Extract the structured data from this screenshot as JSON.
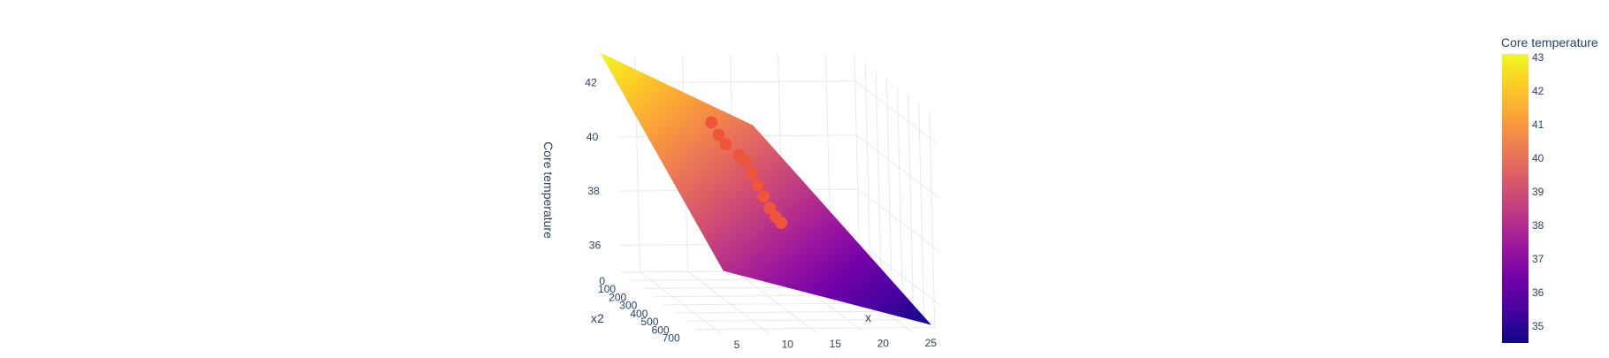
{
  "chart_data": {
    "type": "surface",
    "axes": {
      "x": {
        "title": "x",
        "ticks": [
          "5",
          "10",
          "15",
          "20",
          "25"
        ],
        "range": [
          3,
          28
        ]
      },
      "x2": {
        "title": "x2",
        "ticks": [
          "0",
          "100",
          "200",
          "300",
          "400",
          "500",
          "600",
          "700"
        ],
        "range": [
          0,
          760
        ]
      },
      "z": {
        "title": "Core temperature",
        "ticks": [
          "36",
          "38",
          "40",
          "42"
        ],
        "range": [
          35,
          43
        ]
      }
    },
    "grid": true,
    "surface": {
      "corners_temperature": [
        43,
        34.5
      ],
      "colorscale": [
        "#0d0887",
        "#46039f",
        "#7201a8",
        "#9c179e",
        "#bd3786",
        "#d8576b",
        "#ed7953",
        "#fb9f3a",
        "#fdca26",
        "#f0f921"
      ]
    },
    "scatter": {
      "marker_color": "#ef553b",
      "points": [
        {
          "x": 12,
          "x2": 330,
          "z": 40.3
        },
        {
          "x": 12.5,
          "x2": 340,
          "z": 40.1
        },
        {
          "x": 13,
          "x2": 355,
          "z": 39.7
        },
        {
          "x": 13.5,
          "x2": 365,
          "z": 39.3
        },
        {
          "x": 14,
          "x2": 375,
          "z": 38.9
        },
        {
          "x": 14.5,
          "x2": 385,
          "z": 38.5
        },
        {
          "x": 15,
          "x2": 395,
          "z": 38.2
        },
        {
          "x": 15.5,
          "x2": 400,
          "z": 38.0
        },
        {
          "x": 11,
          "x2": 300,
          "z": 40.6
        },
        {
          "x": 10.5,
          "x2": 280,
          "z": 40.9
        },
        {
          "x": 10,
          "x2": 260,
          "z": 41.3
        }
      ]
    },
    "colorbar": {
      "title": "Core temperature",
      "ticks": [
        "35",
        "36",
        "37",
        "38",
        "39",
        "40",
        "41",
        "42",
        "43"
      ],
      "range": [
        34.5,
        43.1
      ]
    }
  }
}
